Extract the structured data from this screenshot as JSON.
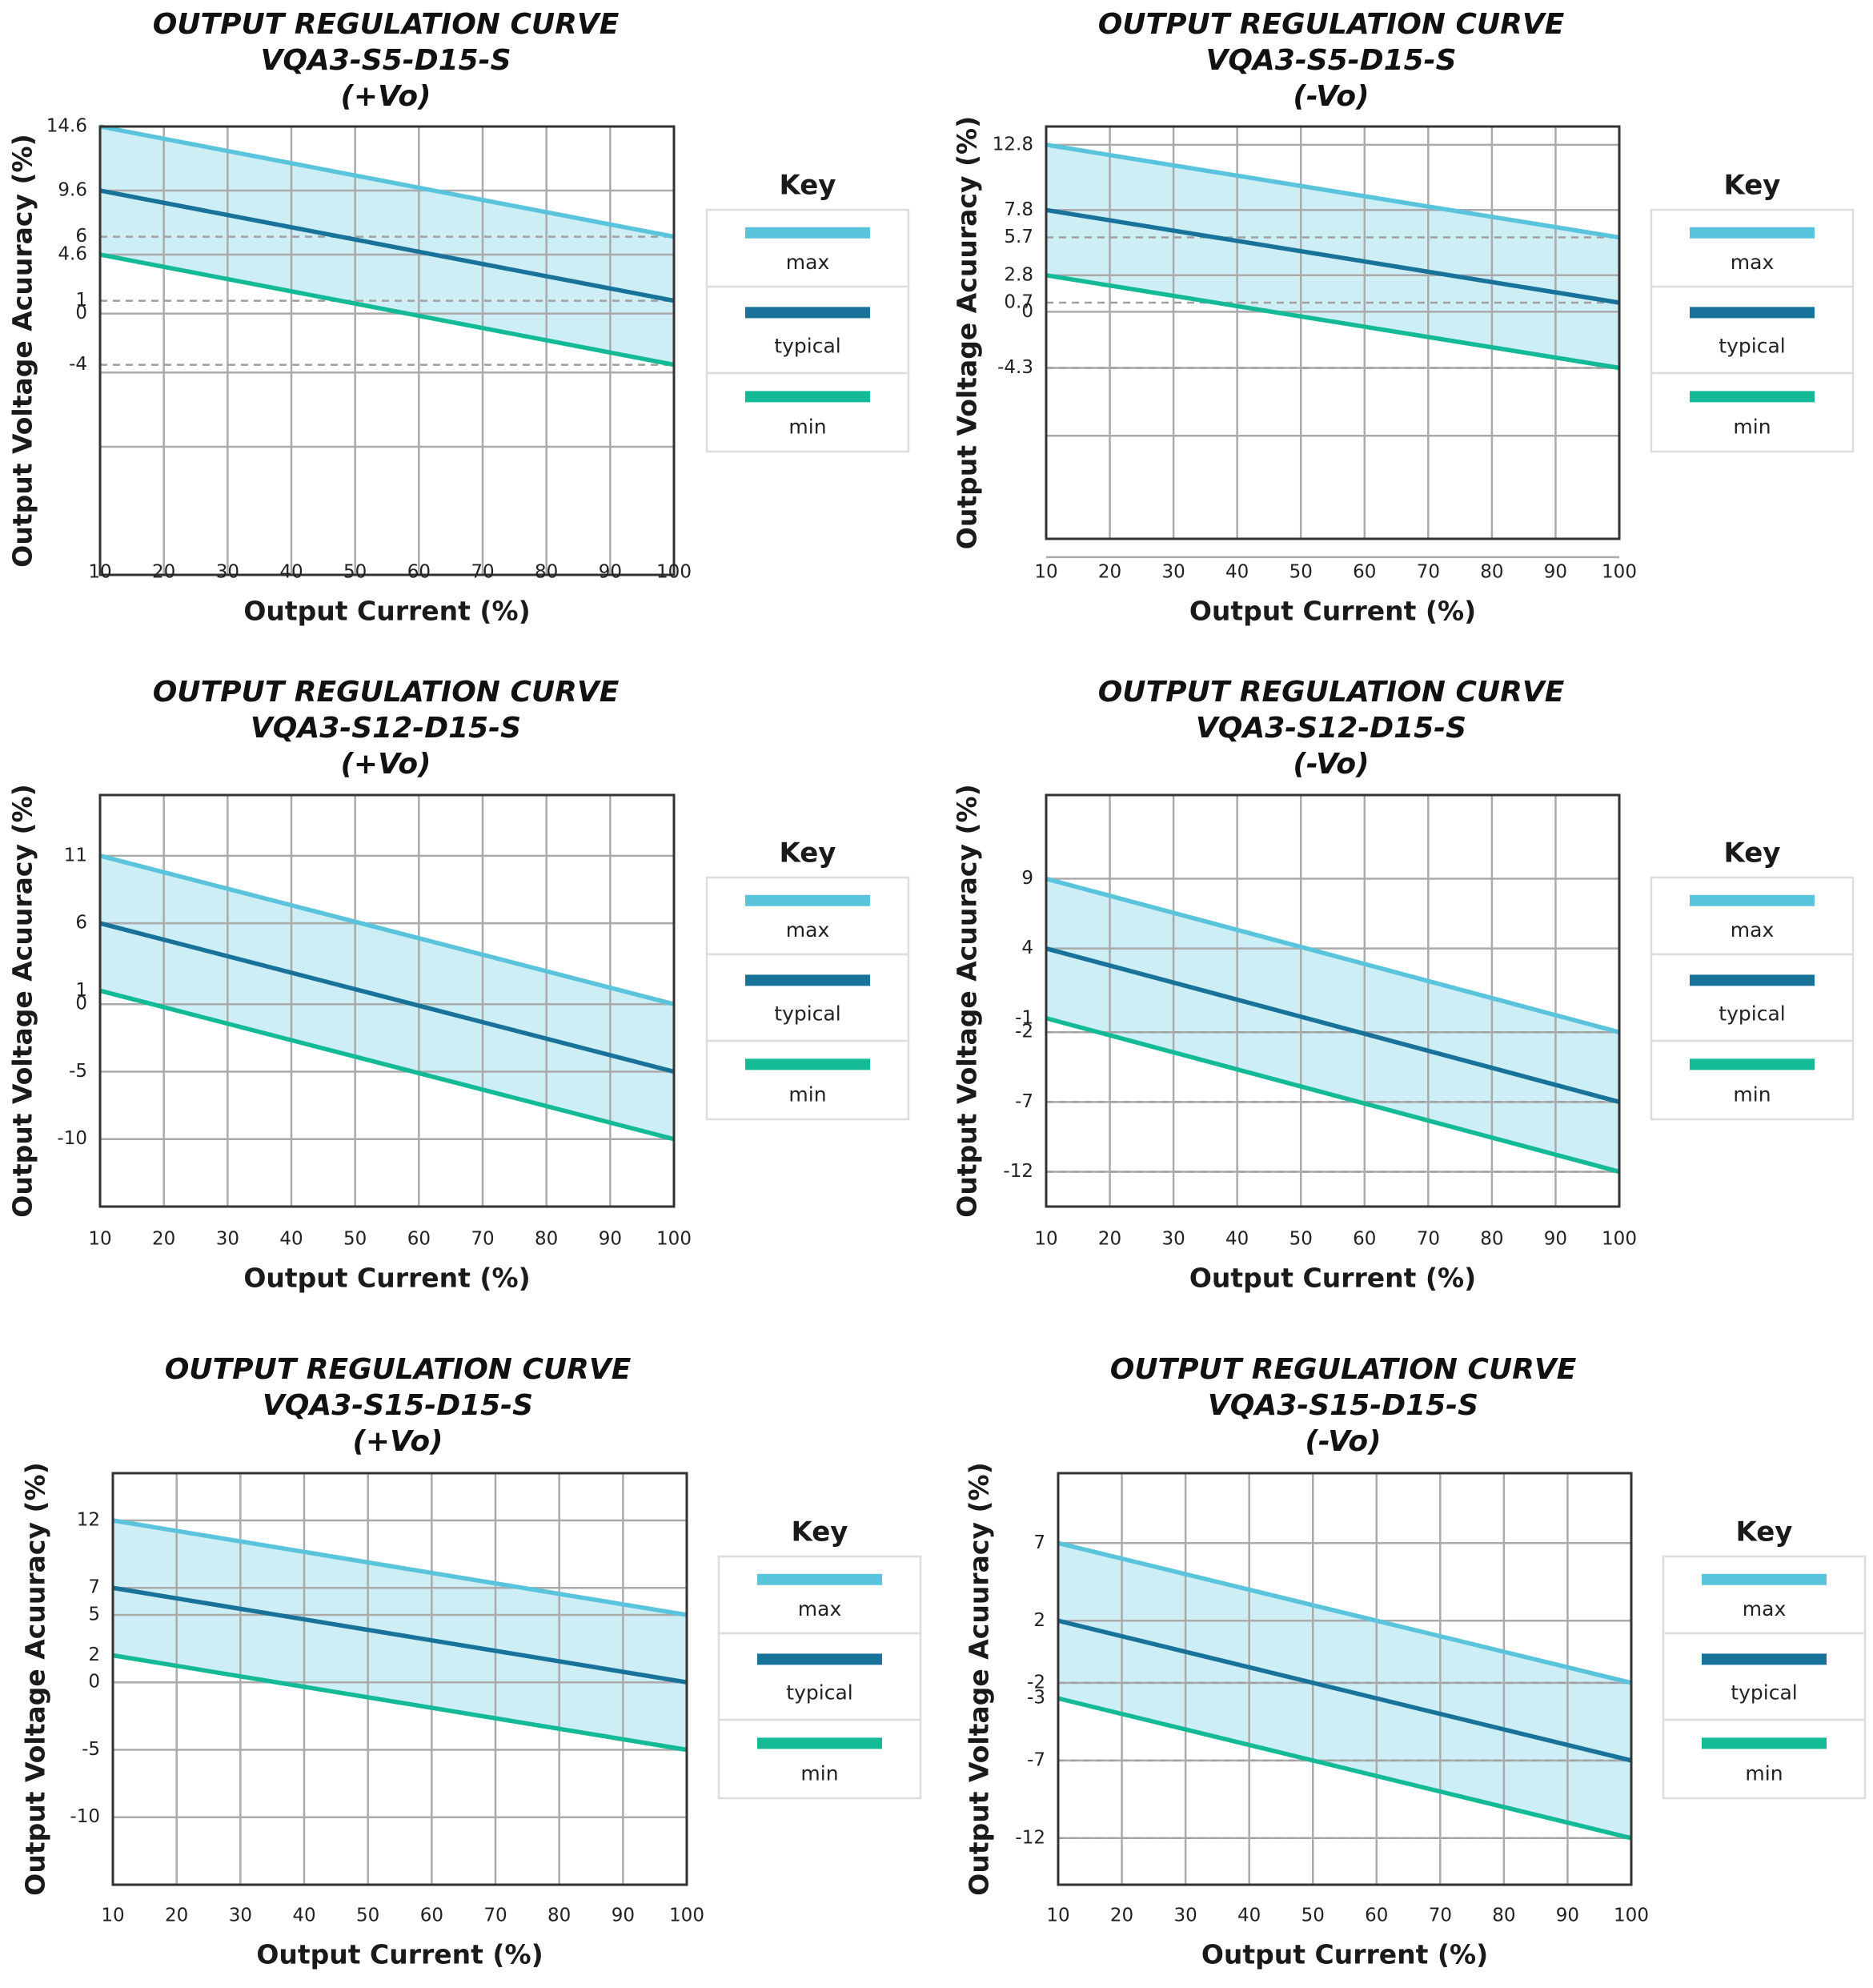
{
  "colors": {
    "max": "#5bc4dd",
    "typical": "#18729a",
    "min": "#14b996",
    "band": "#cdeef5",
    "grid": "#aaaaaa",
    "frame": "#333333",
    "ref_dash": "#a0a0a0",
    "key_border": "#dddddd"
  },
  "chart_data": [
    {
      "type": "line",
      "title": [
        "OUTPUT REGULATION CURVE",
        "VQA3-S5-D15-S",
        "(+Vo)"
      ],
      "xlabel": "Output Current (%)",
      "ylabel": "Output Voltage Acuuracy (%)",
      "x": [
        10,
        100
      ],
      "x_ticks": [
        10,
        20,
        30,
        40,
        50,
        60,
        70,
        80,
        90,
        100
      ],
      "xlim": [
        10,
        100
      ],
      "ylim": [
        -20.4,
        14.6
      ],
      "y_ticks": [
        14.6,
        9.6,
        6,
        4.6,
        1,
        0,
        -4
      ],
      "y_grid": [
        14.6,
        9.6,
        4.6,
        0,
        -4.6,
        -10.4,
        -20.4
      ],
      "ref_lines": [
        6,
        1,
        -4
      ],
      "series": [
        {
          "name": "max",
          "values": [
            14.6,
            6
          ]
        },
        {
          "name": "typical",
          "values": [
            9.6,
            1
          ]
        },
        {
          "name": "min",
          "values": [
            4.6,
            -4
          ]
        }
      ],
      "legend": {
        "title": "Key",
        "entries": [
          "max",
          "typical",
          "min"
        ],
        "position": "right"
      }
    },
    {
      "type": "line",
      "title": [
        "OUTPUT REGULATION CURVE",
        "VQA3-S5-D15-S",
        "(-Vo)"
      ],
      "xlabel": "Output Current (%)",
      "ylabel": "Output Voltage Acuuracy (%)",
      "x": [
        10,
        100
      ],
      "x_ticks": [
        10,
        20,
        30,
        40,
        50,
        60,
        70,
        80,
        90,
        100
      ],
      "xlim": [
        10,
        100
      ],
      "ylim": [
        -17.4,
        14.2
      ],
      "y_ticks": [
        12.8,
        7.8,
        5.7,
        2.8,
        0.7,
        0,
        -4.3
      ],
      "y_grid": [
        12.8,
        7.8,
        2.8,
        0,
        -4.3,
        -9.5,
        -18.8
      ],
      "ref_lines": [
        5.7,
        0.7,
        -4.3
      ],
      "series": [
        {
          "name": "max",
          "values": [
            12.8,
            5.7
          ]
        },
        {
          "name": "typical",
          "values": [
            7.8,
            0.7
          ]
        },
        {
          "name": "min",
          "values": [
            2.8,
            -4.3
          ]
        }
      ],
      "legend": {
        "title": "Key",
        "entries": [
          "max",
          "typical",
          "min"
        ],
        "position": "right"
      }
    },
    {
      "type": "line",
      "title": [
        "OUTPUT REGULATION CURVE",
        "VQA3-S12-D15-S",
        "(+Vo)"
      ],
      "xlabel": "Output Current (%)",
      "ylabel": "Output Voltage Acuuracy (%)",
      "x": [
        10,
        100
      ],
      "x_ticks": [
        10,
        20,
        30,
        40,
        50,
        60,
        70,
        80,
        90,
        100
      ],
      "xlim": [
        10,
        100
      ],
      "ylim": [
        -15,
        15.5
      ],
      "y_ticks": [
        11,
        6,
        1,
        0,
        -5,
        -10
      ],
      "y_grid": [
        15.5,
        11,
        6,
        0,
        -5,
        -10,
        -15
      ],
      "ref_lines": [],
      "series": [
        {
          "name": "max",
          "values": [
            11,
            0
          ]
        },
        {
          "name": "typical",
          "values": [
            6,
            -5
          ]
        },
        {
          "name": "min",
          "values": [
            1,
            -10
          ]
        }
      ],
      "legend": {
        "title": "Key",
        "entries": [
          "max",
          "typical",
          "min"
        ],
        "position": "right"
      }
    },
    {
      "type": "line",
      "title": [
        "OUTPUT REGULATION CURVE",
        "VQA3-S12-D15-S",
        "(-Vo)"
      ],
      "xlabel": "Output Current (%)",
      "ylabel": "Output Voltage Acuuracy (%)",
      "x": [
        10,
        100
      ],
      "x_ticks": [
        10,
        20,
        30,
        40,
        50,
        60,
        70,
        80,
        90,
        100
      ],
      "xlim": [
        10,
        100
      ],
      "ylim": [
        -14.5,
        15
      ],
      "y_ticks": [
        9,
        4,
        -1,
        -2,
        -7,
        -12
      ],
      "y_grid": [
        15,
        9,
        4,
        -2,
        -7,
        -12,
        -14.5
      ],
      "ref_lines": [
        -2,
        -7,
        -12
      ],
      "series": [
        {
          "name": "max",
          "values": [
            9,
            -2
          ]
        },
        {
          "name": "typical",
          "values": [
            4,
            -7
          ]
        },
        {
          "name": "min",
          "values": [
            -1,
            -12
          ]
        }
      ],
      "legend": {
        "title": "Key",
        "entries": [
          "max",
          "typical",
          "min"
        ],
        "position": "right"
      }
    },
    {
      "type": "line",
      "title": [
        "OUTPUT REGULATION CURVE",
        "VQA3-S15-D15-S",
        "(+Vo)"
      ],
      "xlabel": "Output Current (%)",
      "ylabel": "Output Voltage Acuuracy (%)",
      "x": [
        10,
        100
      ],
      "x_ticks": [
        10,
        20,
        30,
        40,
        50,
        60,
        70,
        80,
        90,
        100
      ],
      "xlim": [
        10,
        100
      ],
      "ylim": [
        -15,
        15.5
      ],
      "y_ticks": [
        12,
        7,
        5,
        2,
        0,
        -5,
        -10
      ],
      "y_grid": [
        15.5,
        12,
        7,
        5,
        0,
        -5,
        -10,
        -15
      ],
      "ref_lines": [],
      "series": [
        {
          "name": "max",
          "values": [
            12,
            5
          ]
        },
        {
          "name": "typical",
          "values": [
            7,
            0
          ]
        },
        {
          "name": "min",
          "values": [
            2,
            -5
          ]
        }
      ],
      "legend": {
        "title": "Key",
        "entries": [
          "max",
          "typical",
          "min"
        ],
        "position": "right"
      }
    },
    {
      "type": "line",
      "title": [
        "OUTPUT REGULATION CURVE",
        "VQA3-S15-D15-S",
        "(-Vo)"
      ],
      "xlabel": "Output Current (%)",
      "ylabel": "Output Voltage Acuuracy (%)",
      "x": [
        10,
        100
      ],
      "x_ticks": [
        10,
        20,
        30,
        40,
        50,
        60,
        70,
        80,
        90,
        100
      ],
      "xlim": [
        10,
        100
      ],
      "ylim": [
        -15,
        11.5
      ],
      "y_ticks": [
        7,
        2,
        -2,
        -3,
        -7,
        -12
      ],
      "y_grid": [
        11.5,
        7,
        2,
        -2,
        -7,
        -12,
        -15
      ],
      "ref_lines": [
        -2,
        -7,
        -12
      ],
      "series": [
        {
          "name": "max",
          "values": [
            7,
            -2
          ]
        },
        {
          "name": "typical",
          "values": [
            2,
            -7
          ]
        },
        {
          "name": "min",
          "values": [
            -3,
            -12
          ]
        }
      ],
      "legend": {
        "title": "Key",
        "entries": [
          "max",
          "typical",
          "min"
        ],
        "position": "right"
      }
    }
  ]
}
